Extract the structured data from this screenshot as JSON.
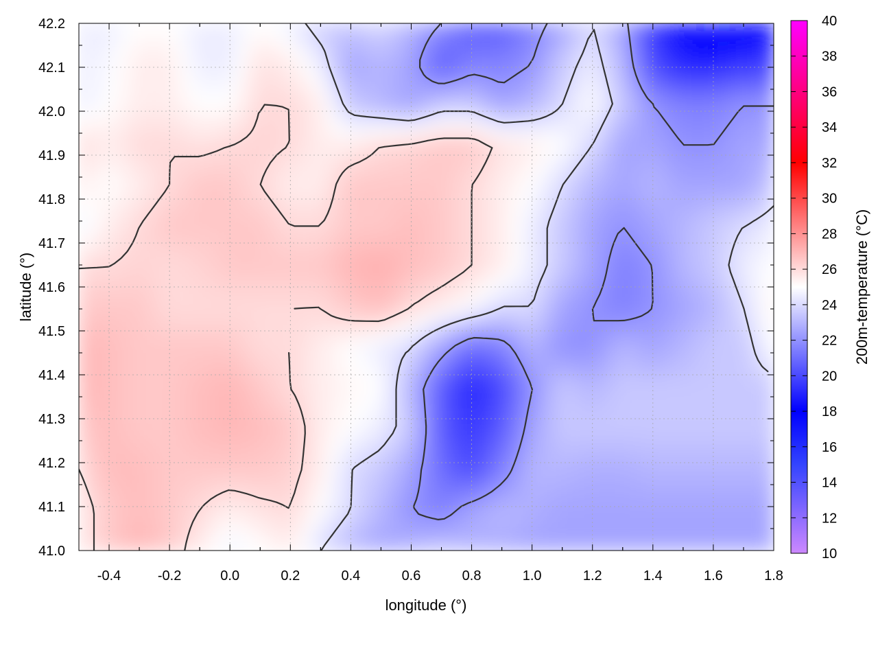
{
  "chart_data": {
    "type": "heatmap",
    "title": "",
    "xlabel": "longitude (°)",
    "ylabel": "latitude (°)",
    "colorbar_label": "200m-temperature (°C)",
    "xlim": [
      -0.5,
      1.8
    ],
    "ylim": [
      41.0,
      42.2
    ],
    "x_ticks": [
      -0.4,
      -0.2,
      0.0,
      0.2,
      0.4,
      0.6,
      0.8,
      1.0,
      1.2,
      1.4,
      1.6,
      1.8
    ],
    "x_tick_labels": [
      "-0.4",
      "-0.2",
      "0.0",
      "0.2",
      "0.4",
      "0.6",
      "0.8",
      "1.0",
      "1.2",
      "1.4",
      "1.6",
      "1.8"
    ],
    "y_ticks": [
      41.0,
      41.1,
      41.2,
      41.3,
      41.4,
      41.5,
      41.6,
      41.7,
      41.8,
      41.9,
      42.0,
      42.1,
      42.2
    ],
    "y_tick_labels": [
      "41.0",
      "41.1",
      "41.2",
      "41.3",
      "41.4",
      "41.5",
      "41.6",
      "41.7",
      "41.8",
      "41.9",
      "42.0",
      "42.1",
      "42.2"
    ],
    "colorbar_range": [
      10,
      40
    ],
    "colorbar_ticks": [
      10,
      12,
      14,
      16,
      18,
      20,
      22,
      24,
      26,
      28,
      30,
      32,
      34,
      36,
      38,
      40
    ],
    "colorbar_tick_labels": [
      "10",
      "12",
      "14",
      "16",
      "18",
      "20",
      "22",
      "24",
      "26",
      "28",
      "30",
      "32",
      "34",
      "36",
      "38",
      "40"
    ],
    "colormap": [
      {
        "value": 10,
        "color": "#cc88ff"
      },
      {
        "value": 15,
        "color": "#3344ff"
      },
      {
        "value": 18,
        "color": "#0000ff"
      },
      {
        "value": 25,
        "color": "#ffffff"
      },
      {
        "value": 32,
        "color": "#ff0000"
      },
      {
        "value": 40,
        "color": "#ff00ff"
      }
    ],
    "grid": true,
    "contour_color": "#333333",
    "grid_values": [
      [
        25.5,
        26.5,
        27.0,
        26.5,
        25.5,
        24.5,
        25.0,
        25.5,
        24.0,
        23.0,
        22.5,
        23.0,
        23.5,
        23.0,
        22.8,
        22.5,
        22.5,
        22.5,
        22.5,
        22.5,
        22.5,
        22.5,
        22.5,
        22.5
      ],
      [
        25.5,
        26.5,
        26.8,
        26.5,
        26.0,
        25.5,
        25.8,
        26.0,
        25.0,
        24.0,
        23.0,
        22.0,
        21.5,
        22.5,
        23.0,
        22.8,
        22.5,
        22.5,
        22.5,
        22.5,
        22.5,
        22.5,
        22.5,
        22.5
      ],
      [
        26.0,
        26.8,
        26.8,
        26.5,
        26.5,
        26.5,
        26.5,
        26.3,
        25.5,
        24.0,
        23.5,
        22.5,
        21.0,
        20.0,
        21.5,
        23.0,
        23.0,
        22.8,
        22.8,
        23.0,
        23.0,
        23.0,
        23.0,
        23.0
      ],
      [
        26.5,
        26.8,
        26.5,
        26.5,
        26.8,
        27.0,
        26.8,
        26.5,
        25.5,
        25.0,
        24.5,
        23.5,
        20.5,
        19.5,
        20.5,
        22.5,
        23.5,
        23.5,
        23.5,
        23.5,
        23.5,
        23.5,
        23.5,
        23.5
      ],
      [
        27.0,
        26.8,
        26.5,
        26.5,
        26.8,
        27.0,
        26.5,
        26.0,
        25.5,
        25.2,
        25.0,
        23.0,
        20.5,
        19.0,
        20.0,
        22.0,
        23.5,
        23.0,
        23.5,
        23.5,
        23.5,
        23.5,
        23.5,
        23.5
      ],
      [
        27.0,
        26.8,
        26.5,
        26.5,
        26.5,
        26.5,
        26.0,
        26.0,
        25.5,
        25.0,
        24.5,
        24.0,
        22.5,
        21.0,
        21.5,
        23.0,
        22.0,
        22.0,
        23.0,
        22.5,
        23.0,
        23.5,
        23.5,
        25.0
      ],
      [
        26.5,
        26.5,
        26.5,
        26.0,
        26.0,
        26.0,
        26.0,
        26.0,
        26.0,
        26.5,
        26.8,
        26.0,
        25.5,
        25.0,
        24.0,
        24.0,
        22.5,
        22.0,
        21.5,
        22.0,
        22.5,
        23.0,
        24.0,
        25.5
      ],
      [
        26.0,
        26.0,
        26.2,
        26.0,
        26.2,
        26.5,
        26.5,
        26.5,
        26.5,
        27.0,
        27.2,
        26.8,
        26.5,
        26.0,
        25.5,
        24.5,
        23.5,
        22.5,
        21.5,
        22.0,
        23.0,
        23.5,
        24.5,
        25.0
      ],
      [
        24.5,
        25.5,
        26.0,
        26.5,
        26.5,
        26.5,
        26.5,
        26.0,
        26.0,
        26.5,
        26.5,
        26.8,
        26.5,
        26.0,
        25.5,
        24.5,
        23.5,
        22.5,
        22.0,
        22.5,
        23.0,
        23.5,
        24.0,
        24.5
      ],
      [
        25.5,
        25.0,
        25.5,
        26.0,
        26.5,
        26.5,
        26.0,
        25.5,
        25.5,
        26.5,
        26.5,
        26.5,
        26.5,
        26.0,
        25.5,
        25.0,
        24.0,
        23.0,
        22.5,
        23.0,
        22.5,
        22.5,
        22.5,
        23.5
      ],
      [
        26.0,
        25.5,
        26.0,
        26.0,
        25.8,
        26.0,
        26.2,
        26.0,
        25.5,
        25.5,
        26.0,
        26.2,
        26.5,
        26.5,
        25.8,
        25.5,
        25.0,
        24.0,
        22.5,
        22.5,
        22.0,
        22.0,
        22.5,
        22.5
      ],
      [
        24.5,
        25.0,
        25.5,
        25.5,
        25.0,
        25.0,
        26.0,
        26.0,
        25.5,
        23.5,
        23.0,
        22.5,
        23.5,
        23.5,
        22.5,
        23.0,
        24.0,
        25.0,
        23.5,
        22.0,
        21.5,
        21.5,
        22.0,
        22.0
      ],
      [
        24.5,
        24.8,
        25.5,
        25.5,
        24.5,
        24.5,
        25.8,
        25.5,
        24.5,
        22.5,
        23.0,
        22.5,
        20.5,
        21.5,
        21.5,
        22.0,
        23.5,
        24.5,
        23.0,
        20.0,
        19.0,
        19.0,
        19.5,
        19.5
      ],
      [
        24.5,
        24.5,
        25.0,
        25.0,
        24.5,
        24.5,
        25.0,
        24.5,
        23.5,
        23.5,
        24.0,
        23.0,
        22.0,
        20.5,
        20.5,
        21.5,
        22.5,
        24.0,
        22.5,
        19.5,
        18.0,
        16.5,
        17.5,
        18.0
      ]
    ]
  }
}
